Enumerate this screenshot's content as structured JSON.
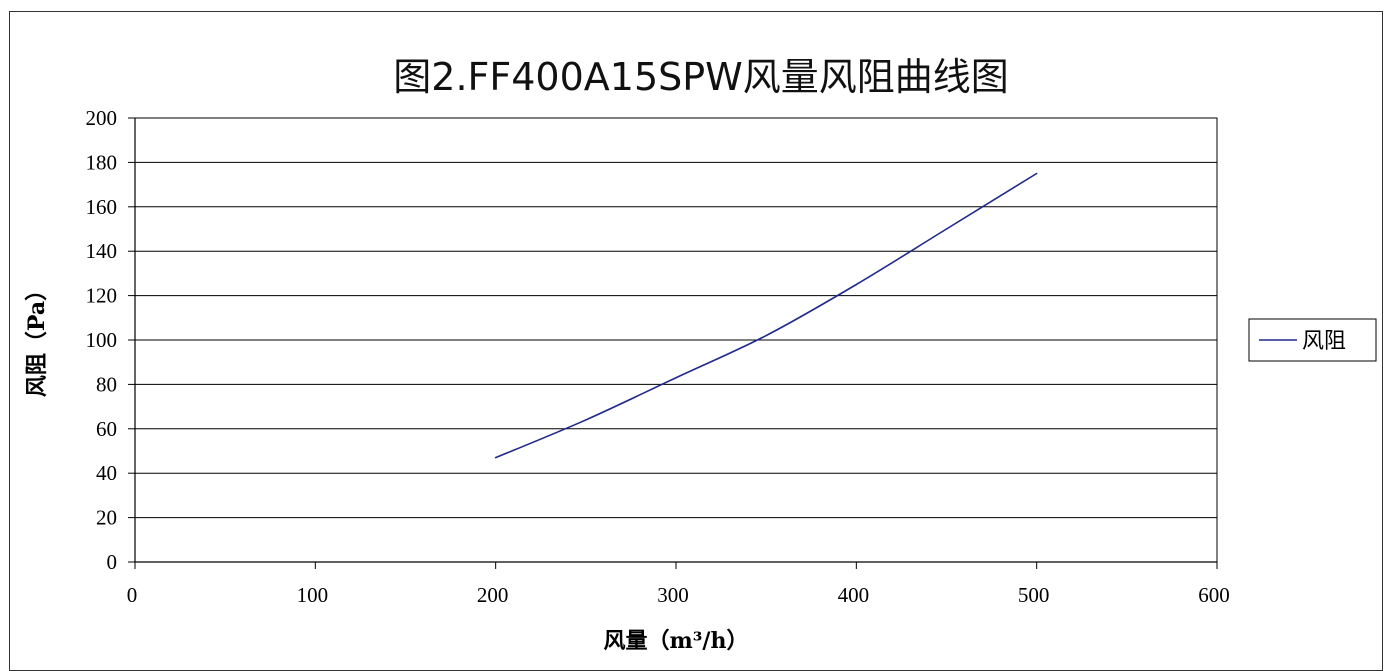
{
  "chart_data": {
    "type": "line",
    "title": "图2.FF400A15SPW风量风阻曲线图",
    "xlabel": "风量（m³/h）",
    "ylabel": "风阻（Pa）",
    "xlim": [
      0,
      600
    ],
    "ylim": [
      0,
      200
    ],
    "xticks": [
      0,
      100,
      200,
      300,
      400,
      500,
      600
    ],
    "yticks": [
      0,
      20,
      40,
      60,
      80,
      100,
      120,
      140,
      160,
      180,
      200
    ],
    "grid": "horizontal",
    "legend_position": "right",
    "series": [
      {
        "name": "风阻",
        "color": "#1f2a8a",
        "x": [
          200,
          250,
          300,
          350,
          400,
          450,
          500
        ],
        "y": [
          47,
          64,
          83,
          102,
          125,
          150,
          175
        ]
      }
    ]
  }
}
